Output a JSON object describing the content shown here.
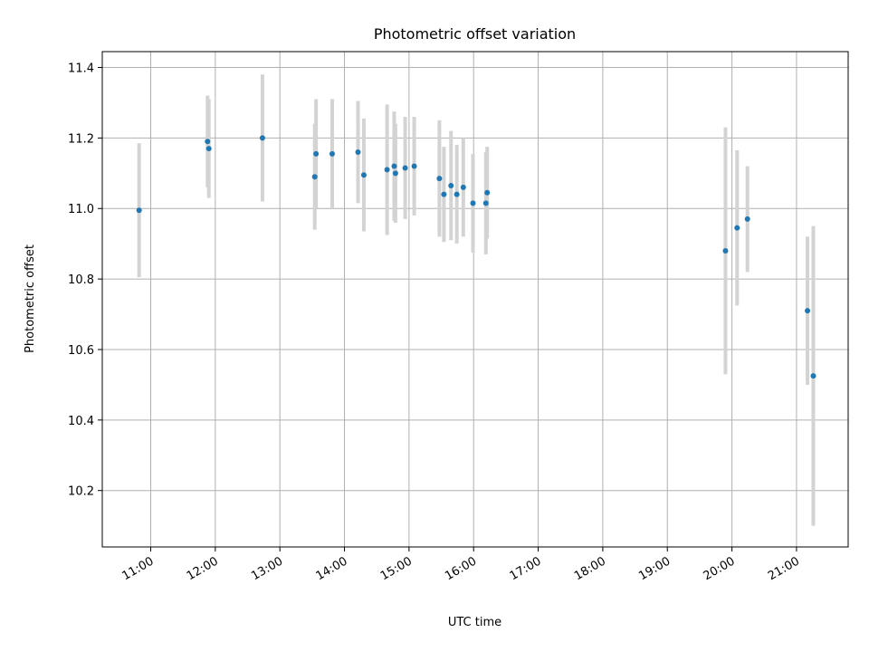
{
  "chart_data": {
    "type": "scatter",
    "title": "Photometric offset variation",
    "xlabel": "UTC time",
    "ylabel": "Photometric offset",
    "x_unit": "UTC time (decimal hours)",
    "xlim": [
      10.25,
      21.8
    ],
    "ylim": [
      10.04,
      11.445
    ],
    "x_ticks": [
      {
        "value": 11,
        "label": "11:00"
      },
      {
        "value": 12,
        "label": "12:00"
      },
      {
        "value": 13,
        "label": "13:00"
      },
      {
        "value": 14,
        "label": "14:00"
      },
      {
        "value": 15,
        "label": "15:00"
      },
      {
        "value": 16,
        "label": "16:00"
      },
      {
        "value": 17,
        "label": "17:00"
      },
      {
        "value": 18,
        "label": "18:00"
      },
      {
        "value": 19,
        "label": "19:00"
      },
      {
        "value": 20,
        "label": "20:00"
      },
      {
        "value": 21,
        "label": "21:00"
      }
    ],
    "y_ticks": [
      {
        "value": 10.2,
        "label": "10.2"
      },
      {
        "value": 10.4,
        "label": "10.4"
      },
      {
        "value": 10.6,
        "label": "10.6"
      },
      {
        "value": 10.8,
        "label": "10.8"
      },
      {
        "value": 11.0,
        "label": "11.0"
      },
      {
        "value": 11.2,
        "label": "11.2"
      },
      {
        "value": 11.4,
        "label": "11.4"
      }
    ],
    "grid": true,
    "marker_color": "#1f77b4",
    "errorbar_color": "#d3d3d3",
    "points": [
      {
        "x": 10.82,
        "y": 10.995,
        "err": 0.19
      },
      {
        "x": 11.88,
        "y": 11.19,
        "err": 0.13
      },
      {
        "x": 11.9,
        "y": 11.17,
        "err": 0.14
      },
      {
        "x": 12.73,
        "y": 11.2,
        "err": 0.18
      },
      {
        "x": 13.54,
        "y": 11.09,
        "err": 0.15
      },
      {
        "x": 13.56,
        "y": 11.155,
        "err": 0.155
      },
      {
        "x": 13.81,
        "y": 11.155,
        "err": 0.155
      },
      {
        "x": 14.21,
        "y": 11.16,
        "err": 0.145
      },
      {
        "x": 14.3,
        "y": 11.095,
        "err": 0.16
      },
      {
        "x": 14.66,
        "y": 11.11,
        "err": 0.185
      },
      {
        "x": 14.77,
        "y": 11.12,
        "err": 0.155
      },
      {
        "x": 14.79,
        "y": 11.1,
        "err": 0.14
      },
      {
        "x": 14.94,
        "y": 11.115,
        "err": 0.145
      },
      {
        "x": 15.08,
        "y": 11.12,
        "err": 0.14
      },
      {
        "x": 15.47,
        "y": 11.085,
        "err": 0.165
      },
      {
        "x": 15.54,
        "y": 11.04,
        "err": 0.135
      },
      {
        "x": 15.65,
        "y": 11.065,
        "err": 0.155
      },
      {
        "x": 15.74,
        "y": 11.04,
        "err": 0.14
      },
      {
        "x": 15.84,
        "y": 11.06,
        "err": 0.14
      },
      {
        "x": 15.99,
        "y": 11.015,
        "err": 0.14
      },
      {
        "x": 16.19,
        "y": 11.015,
        "err": 0.145
      },
      {
        "x": 16.21,
        "y": 11.045,
        "err": 0.13
      },
      {
        "x": 19.9,
        "y": 10.88,
        "err": 0.35
      },
      {
        "x": 20.08,
        "y": 10.945,
        "err": 0.22
      },
      {
        "x": 20.24,
        "y": 10.97,
        "err": 0.15
      },
      {
        "x": 21.17,
        "y": 10.71,
        "err": 0.21
      },
      {
        "x": 21.26,
        "y": 10.525,
        "err": 0.425
      }
    ]
  }
}
